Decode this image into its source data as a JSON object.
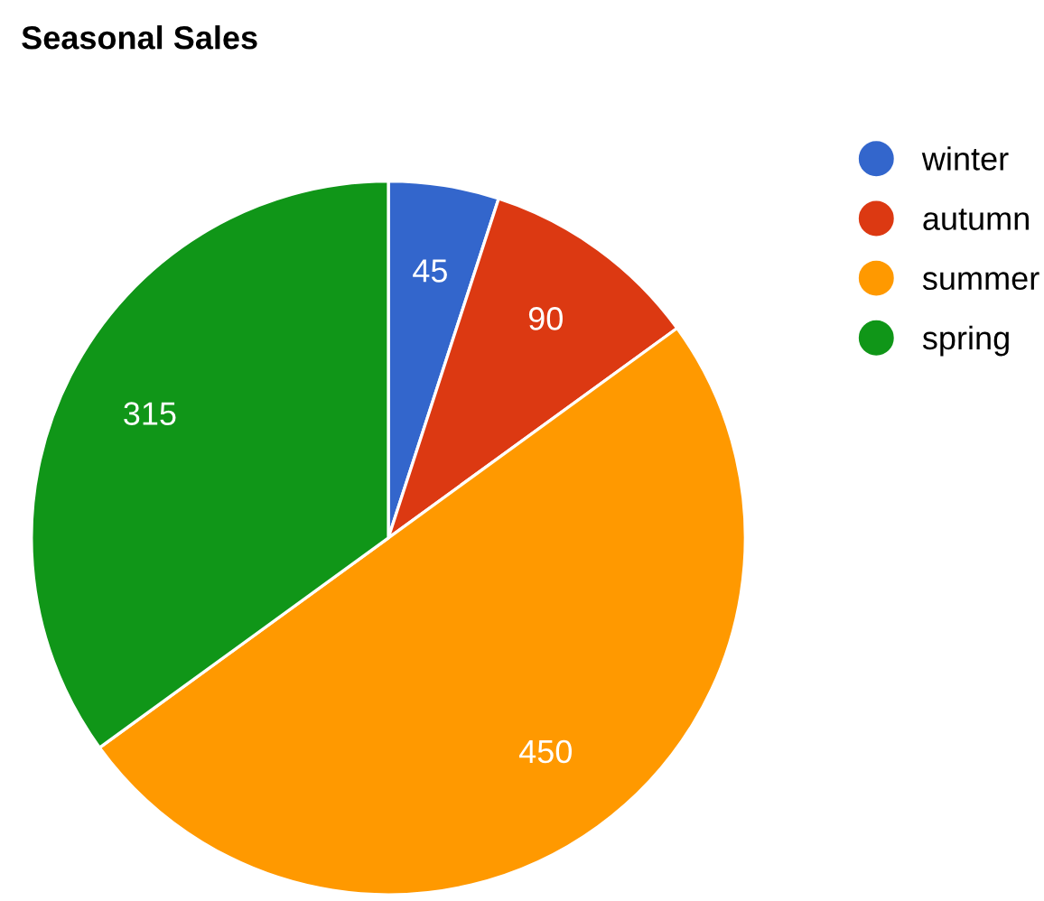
{
  "chart_data": {
    "type": "pie",
    "title": "Seasonal Sales",
    "categories": [
      "winter",
      "autumn",
      "summer",
      "spring"
    ],
    "values": [
      45,
      90,
      450,
      315
    ],
    "colors": [
      "#3366cc",
      "#dc3912",
      "#ff9900",
      "#109618"
    ],
    "data_labels": true,
    "legend": "top right"
  }
}
